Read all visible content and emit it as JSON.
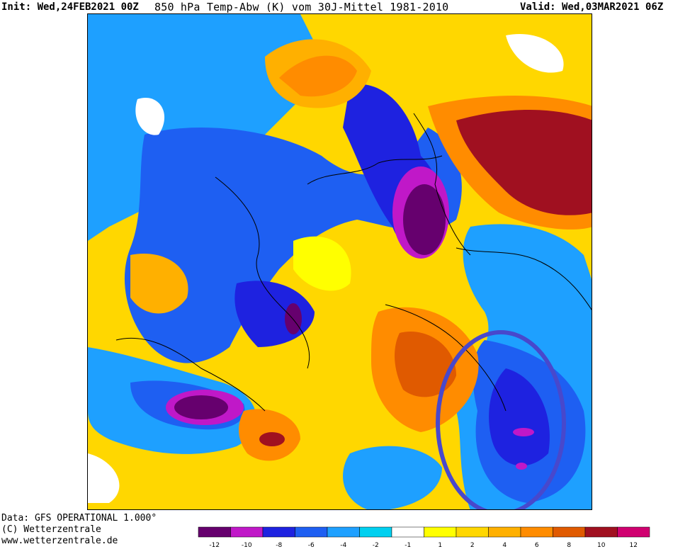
{
  "header": {
    "init": "Init: Wed,24FEB2021 00Z",
    "title": "850 hPa Temp-Abw (K) vom 30J-Mittel 1981-2010",
    "valid": "Valid: Wed,03MAR2021 06Z"
  },
  "footer": {
    "data_source": "Data: GFS OPERATIONAL 1.000°",
    "copyright": "(C) Wetterzentrale",
    "url": "www.wetterzentrale.de"
  },
  "colors": {
    "-12": "#66006e",
    "-10": "#c018c8",
    "-8": "#1e22e0",
    "-6": "#1e5ff2",
    "-4": "#1ea0ff",
    "-2": "#00d0f0",
    "-1": "#ffffff",
    "1": "#ffff00",
    "2": "#ffd700",
    "4": "#ffb000",
    "6": "#ff8c00",
    "8": "#e05a00",
    "10": "#a01020",
    "12": "#d00070"
  },
  "legend": {
    "colors": [
      "#66006e",
      "#c018c8",
      "#1e22e0",
      "#1e5ff2",
      "#1ea0ff",
      "#00d0f0",
      "#ffffff",
      "#ffff00",
      "#ffd700",
      "#ffb000",
      "#ff8c00",
      "#e05a00",
      "#a01020",
      "#d00070"
    ],
    "labels": [
      "-12",
      "-10",
      "-8",
      "-6",
      "-4",
      "-2",
      "-1",
      "1",
      "2",
      "4",
      "6",
      "8",
      "10",
      "12"
    ]
  },
  "annotation": {
    "shape": "ellipse",
    "color": "#4848cc"
  }
}
